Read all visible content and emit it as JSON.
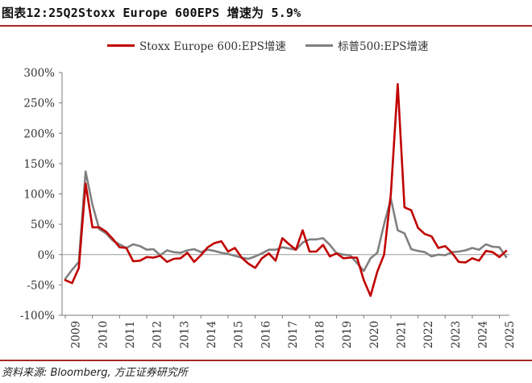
{
  "title": "图表12:25Q2Stoxx Europe 600EPS 增速为 5.9%",
  "source": "资料来源: Bloomberg, 方正证券研究所",
  "chart_data": {
    "type": "line",
    "title": "图表12:25Q2Stoxx Europe 600EPS 增速为 5.9%",
    "xlabel": "",
    "ylabel": "",
    "x_range": [
      "2009Q1",
      "2025Q2"
    ],
    "x_tick_labels": [
      "2009",
      "2010",
      "2011",
      "2012",
      "2013",
      "2014",
      "2015",
      "2016",
      "2017",
      "2018",
      "2019",
      "2020",
      "2021",
      "2022",
      "2023",
      "2024",
      "2025"
    ],
    "ylim": [
      -100,
      300
    ],
    "y_ticks": [
      -100,
      -50,
      0,
      50,
      100,
      150,
      200,
      250,
      300
    ],
    "y_tick_labels": [
      "-100%",
      "-50%",
      "0%",
      "50%",
      "100%",
      "150%",
      "200%",
      "250%",
      "300%"
    ],
    "grid": false,
    "legend_position": "top-center",
    "series": [
      {
        "name": "Stoxx Europe 600:EPS增速",
        "color": "#c00000",
        "values": [
          -42,
          -47,
          -22,
          117,
          45,
          45,
          38,
          26,
          12,
          11,
          -11,
          -10,
          -4,
          -5,
          -2,
          -12,
          -7,
          -6,
          3,
          -12,
          -1,
          12,
          19,
          22,
          5,
          11,
          -5,
          -15,
          -22,
          -6,
          2,
          -10,
          27,
          17,
          8,
          40,
          5,
          5,
          16,
          -3,
          2,
          -6,
          -5,
          -5,
          -42,
          -68,
          -28,
          0,
          100,
          281,
          78,
          73,
          44,
          34,
          30,
          11,
          14,
          3,
          -12,
          -13,
          -6,
          -10,
          6,
          4,
          -4,
          6
        ]
      },
      {
        "name": "标普500:EPS增速",
        "color": "#808080",
        "values": [
          -40,
          -25,
          -12,
          137,
          82,
          42,
          35,
          23,
          17,
          11,
          17,
          14,
          8,
          9,
          -1,
          7,
          4,
          3,
          7,
          9,
          4,
          8,
          6,
          3,
          1,
          -2,
          -5,
          -7,
          -3,
          2,
          8,
          8,
          12,
          10,
          8,
          20,
          25,
          25,
          27,
          16,
          2,
          0,
          -1,
          -14,
          -27,
          -6,
          3,
          50,
          92,
          40,
          35,
          9,
          6,
          4,
          -3,
          0,
          -1,
          4,
          5,
          7,
          11,
          8,
          17,
          13,
          12,
          -4
        ]
      }
    ]
  }
}
